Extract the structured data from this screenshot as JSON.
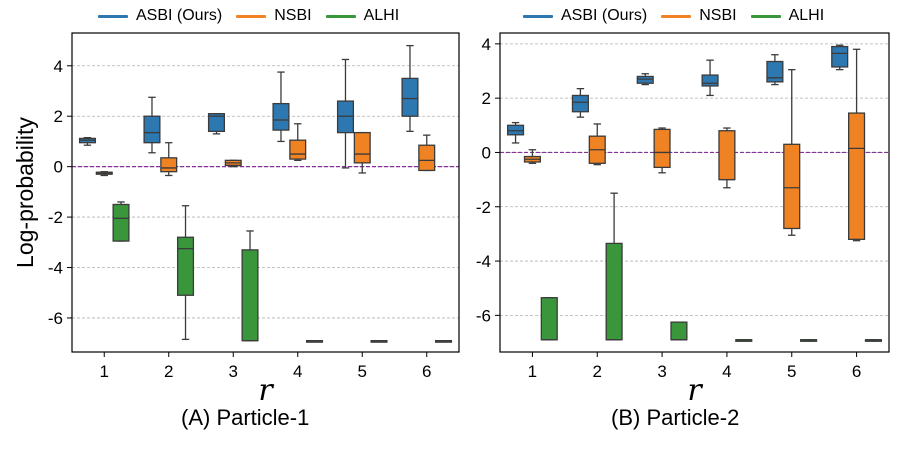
{
  "colors": {
    "ASBI (Ours)": "#2e78b1",
    "NSBI": "#ef8222",
    "ALHI": "#3a963a",
    "reference_line": "#8a2f9f",
    "grid": "#b0b0b0",
    "whisker": "#3b3b3b"
  },
  "legend": {
    "items": [
      {
        "label": "ASBI (Ours)",
        "color": "#2e78b1"
      },
      {
        "label": "NSBI",
        "color": "#ef8222"
      },
      {
        "label": "ALHI",
        "color": "#3a963a"
      }
    ]
  },
  "chart_data": [
    {
      "type": "box",
      "panel": "A",
      "caption": "(A) Particle-1",
      "xlabel": "r",
      "ylabel": "Log-probability",
      "categories": [
        "1",
        "2",
        "3",
        "4",
        "5",
        "6"
      ],
      "ylim": [
        -7.35,
        5.3
      ],
      "yticks": [
        -6,
        -4,
        -2,
        0,
        2,
        4
      ],
      "ytick_labels": [
        "-6",
        "-4",
        "-2",
        "0",
        "2",
        "4"
      ],
      "grid": "horizontal dashed",
      "reference_line": 0,
      "series": [
        {
          "name": "ASBI (Ours)",
          "boxes": [
            {
              "min": 0.85,
              "q1": 0.95,
              "median": 1.05,
              "q3": 1.12,
              "max": 1.15
            },
            {
              "min": 0.55,
              "q1": 0.95,
              "median": 1.35,
              "q3": 2.0,
              "max": 2.75
            },
            {
              "min": 1.3,
              "q1": 1.4,
              "median": 2.0,
              "q3": 2.1,
              "max": 2.1
            },
            {
              "min": 1.0,
              "q1": 1.45,
              "median": 1.85,
              "q3": 2.5,
              "max": 3.75
            },
            {
              "min": -0.05,
              "q1": 1.35,
              "median": 2.0,
              "q3": 2.6,
              "max": 4.25
            },
            {
              "min": 1.4,
              "q1": 2.0,
              "median": 2.7,
              "q3": 3.5,
              "max": 4.8
            }
          ]
        },
        {
          "name": "NSBI",
          "boxes": [
            {
              "min": -0.35,
              "q1": -0.3,
              "median": -0.27,
              "q3": -0.22,
              "max": -0.2
            },
            {
              "min": -0.35,
              "q1": -0.2,
              "median": -0.05,
              "q3": 0.35,
              "max": 0.95
            },
            {
              "min": 0.0,
              "q1": 0.05,
              "median": 0.15,
              "q3": 0.25,
              "max": 0.25
            },
            {
              "min": 0.25,
              "q1": 0.3,
              "median": 0.5,
              "q3": 1.05,
              "max": 1.7
            },
            {
              "min": -0.25,
              "q1": 0.15,
              "median": 0.5,
              "q3": 1.35,
              "max": 1.35
            },
            {
              "min": -0.15,
              "q1": -0.15,
              "median": 0.25,
              "q3": 0.85,
              "max": 1.25
            }
          ]
        },
        {
          "name": "ALHI",
          "boxes": [
            {
              "min": -2.95,
              "q1": -2.95,
              "median": -2.05,
              "q3": -1.5,
              "max": -1.4
            },
            {
              "min": -6.85,
              "q1": -5.1,
              "median": -3.25,
              "q3": -2.8,
              "max": -1.55
            },
            {
              "min": -6.9,
              "q1": -6.9,
              "median": -6.9,
              "q3": -3.3,
              "max": -2.55
            },
            {
              "min": -6.9,
              "q1": -6.9,
              "median": -6.9,
              "q3": -6.9,
              "max": -6.9
            },
            {
              "min": -6.9,
              "q1": -6.9,
              "median": -6.9,
              "q3": -6.9,
              "max": -6.9
            },
            {
              "min": -6.9,
              "q1": -6.9,
              "median": -6.9,
              "q3": -6.9,
              "max": -6.9
            }
          ]
        }
      ]
    },
    {
      "type": "box",
      "panel": "B",
      "caption": "(B) Particle-2",
      "xlabel": "r",
      "ylabel": "",
      "categories": [
        "1",
        "2",
        "3",
        "4",
        "5",
        "6"
      ],
      "ylim": [
        -7.35,
        4.4
      ],
      "yticks": [
        -6,
        -4,
        -2,
        0,
        2,
        4
      ],
      "ytick_labels": [
        "-6",
        "-4",
        "-2",
        "0",
        "2",
        "4"
      ],
      "grid": "horizontal dashed",
      "reference_line": 0,
      "series": [
        {
          "name": "ASBI (Ours)",
          "boxes": [
            {
              "min": 0.35,
              "q1": 0.65,
              "median": 0.8,
              "q3": 1.0,
              "max": 1.1
            },
            {
              "min": 1.3,
              "q1": 1.5,
              "median": 1.85,
              "q3": 2.1,
              "max": 2.35
            },
            {
              "min": 2.5,
              "q1": 2.55,
              "median": 2.7,
              "q3": 2.8,
              "max": 2.9
            },
            {
              "min": 2.1,
              "q1": 2.45,
              "median": 2.55,
              "q3": 2.85,
              "max": 3.4
            },
            {
              "min": 2.5,
              "q1": 2.6,
              "median": 2.75,
              "q3": 3.35,
              "max": 3.6
            },
            {
              "min": 3.05,
              "q1": 3.15,
              "median": 3.65,
              "q3": 3.9,
              "max": 3.95
            }
          ]
        },
        {
          "name": "NSBI",
          "boxes": [
            {
              "min": -0.4,
              "q1": -0.35,
              "median": -0.25,
              "q3": -0.15,
              "max": 0.1
            },
            {
              "min": -0.45,
              "q1": -0.4,
              "median": 0.1,
              "q3": 0.6,
              "max": 1.05
            },
            {
              "min": -0.75,
              "q1": -0.55,
              "median": 0.0,
              "q3": 0.85,
              "max": 0.9
            },
            {
              "min": -1.3,
              "q1": -1.0,
              "median": -1.0,
              "q3": 0.8,
              "max": 0.9
            },
            {
              "min": -3.05,
              "q1": -2.8,
              "median": -1.3,
              "q3": 0.3,
              "max": 3.05
            },
            {
              "min": -3.25,
              "q1": -3.2,
              "median": 0.15,
              "q3": 1.45,
              "max": 3.8
            }
          ]
        },
        {
          "name": "ALHI",
          "boxes": [
            {
              "min": -6.9,
              "q1": -6.9,
              "median": -6.9,
              "q3": -5.35,
              "max": -5.35
            },
            {
              "min": -6.9,
              "q1": -6.9,
              "median": -6.9,
              "q3": -3.35,
              "max": -1.5
            },
            {
              "min": -6.9,
              "q1": -6.9,
              "median": -6.9,
              "q3": -6.25,
              "max": -6.25
            },
            {
              "min": -6.9,
              "q1": -6.9,
              "median": -6.9,
              "q3": -6.9,
              "max": -6.9
            },
            {
              "min": -6.9,
              "q1": -6.9,
              "median": -6.9,
              "q3": -6.9,
              "max": -6.9
            },
            {
              "min": -6.9,
              "q1": -6.9,
              "median": -6.9,
              "q3": -6.9,
              "max": -6.9
            }
          ]
        }
      ]
    }
  ]
}
